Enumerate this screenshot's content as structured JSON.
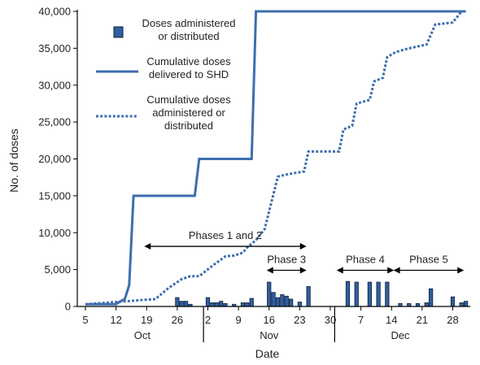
{
  "chart_data": {
    "type": "bar+line",
    "ylabel": "No. of doses",
    "xlabel": "Date",
    "ylim": [
      0,
      40000
    ],
    "yticks": [
      0,
      5000,
      10000,
      15000,
      20000,
      25000,
      30000,
      35000,
      40000
    ],
    "ytick_labels": [
      "0",
      "5,000",
      "10,000",
      "15,000",
      "20,000",
      "25,000",
      "30,000",
      "35,000",
      "40,000"
    ],
    "xlim": [
      "2009-10-05",
      "2010-01-01"
    ],
    "xticks": [
      "2009-10-05",
      "2009-10-12",
      "2009-10-19",
      "2009-10-26",
      "2009-11-02",
      "2009-11-09",
      "2009-11-16",
      "2009-11-23",
      "2009-11-30",
      "2009-12-07",
      "2009-12-14",
      "2009-12-21",
      "2009-12-28"
    ],
    "xtick_labels": [
      "5",
      "12",
      "19",
      "26",
      "2",
      "9",
      "16",
      "23",
      "30",
      "7",
      "14",
      "21",
      "28"
    ],
    "month_labels": [
      {
        "label": "Oct",
        "center": "2009-10-18"
      },
      {
        "label": "Nov",
        "center": "2009-11-16"
      },
      {
        "label": "Dec",
        "center": "2009-12-16"
      }
    ],
    "month_separators": [
      "2009-11-01",
      "2009-12-01"
    ],
    "legend": [
      {
        "label_lines": [
          "Doses administered",
          "or distributed"
        ],
        "kind": "bar"
      },
      {
        "label_lines": [
          "Cumulative doses",
          "delivered to SHD"
        ],
        "kind": "solid"
      },
      {
        "label_lines": [
          "Cumulative doses",
          "administered or",
          "distributed"
        ],
        "kind": "dotted"
      }
    ],
    "series": [
      {
        "name": "Doses administered or distributed",
        "kind": "bar",
        "x": [
          "2009-10-26",
          "2009-10-27",
          "2009-10-28",
          "2009-10-29",
          "2009-11-02",
          "2009-11-03",
          "2009-11-04",
          "2009-11-05",
          "2009-11-06",
          "2009-11-08",
          "2009-11-10",
          "2009-11-11",
          "2009-11-12",
          "2009-11-16",
          "2009-11-17",
          "2009-11-18",
          "2009-11-19",
          "2009-11-20",
          "2009-11-21",
          "2009-11-23",
          "2009-11-25",
          "2009-12-04",
          "2009-12-06",
          "2009-12-09",
          "2009-12-11",
          "2009-12-13",
          "2009-12-16",
          "2009-12-18",
          "2009-12-20",
          "2009-12-22",
          "2009-12-23",
          "2009-12-28",
          "2009-12-30",
          "2009-12-31"
        ],
        "values": [
          1200,
          700,
          700,
          300,
          1200,
          500,
          500,
          700,
          400,
          300,
          500,
          500,
          1100,
          3300,
          1900,
          1200,
          1600,
          1400,
          1000,
          600,
          2700,
          3400,
          3300,
          3300,
          3300,
          3300,
          400,
          400,
          400,
          500,
          2400,
          1300,
          500,
          700
        ]
      },
      {
        "name": "Cumulative doses delivered to SHD",
        "kind": "solid",
        "x": [
          "2009-10-05",
          "2009-10-12",
          "2009-10-13",
          "2009-10-14",
          "2009-10-15",
          "2009-10-16",
          "2009-10-30",
          "2009-10-31",
          "2009-11-04",
          "2009-11-05",
          "2009-11-12",
          "2009-11-13",
          "2009-12-31"
        ],
        "values": [
          300,
          300,
          700,
          1000,
          2900,
          15000,
          15000,
          20000,
          20000,
          20000,
          20000,
          40000,
          40000
        ]
      },
      {
        "name": "Cumulative doses administered or distributed",
        "kind": "dotted",
        "x": [
          "2009-10-05",
          "2009-10-21",
          "2009-10-24",
          "2009-10-27",
          "2009-10-29",
          "2009-10-31",
          "2009-11-03",
          "2009-11-06",
          "2009-11-08",
          "2009-11-10",
          "2009-11-11",
          "2009-11-13",
          "2009-11-15",
          "2009-11-18",
          "2009-11-20",
          "2009-11-21",
          "2009-11-24",
          "2009-11-25",
          "2009-12-02",
          "2009-12-03",
          "2009-12-05",
          "2009-12-06",
          "2009-12-09",
          "2009-12-10",
          "2009-12-12",
          "2009-12-13",
          "2009-12-15",
          "2009-12-18",
          "2009-12-22",
          "2009-12-24",
          "2009-12-28",
          "2009-12-30",
          "2009-12-31"
        ],
        "values": [
          300,
          1000,
          2500,
          3700,
          4100,
          4100,
          5500,
          6800,
          6900,
          7300,
          8000,
          9000,
          10500,
          17600,
          17900,
          18000,
          18300,
          21000,
          21000,
          24000,
          24500,
          27500,
          28000,
          30500,
          31000,
          33800,
          34500,
          35000,
          35500,
          38200,
          38500,
          40000,
          40000
        ]
      }
    ],
    "annotations": [
      {
        "text": "Phases 1 and 2",
        "span": [
          "2009-10-19",
          "2009-11-24"
        ]
      },
      {
        "text": "Phase 3",
        "span": [
          "2009-11-16",
          "2009-11-24"
        ]
      },
      {
        "text": "Phase 4",
        "span": [
          "2009-12-02",
          "2009-12-14"
        ]
      },
      {
        "text": "Phase 5",
        "span": [
          "2009-12-15",
          "2009-12-30"
        ]
      }
    ],
    "colors": {
      "bar_fill": "#2f5f9e",
      "bar_stroke": "#0d1f3c",
      "line": "#3c6eae",
      "text": "#231f20"
    }
  }
}
